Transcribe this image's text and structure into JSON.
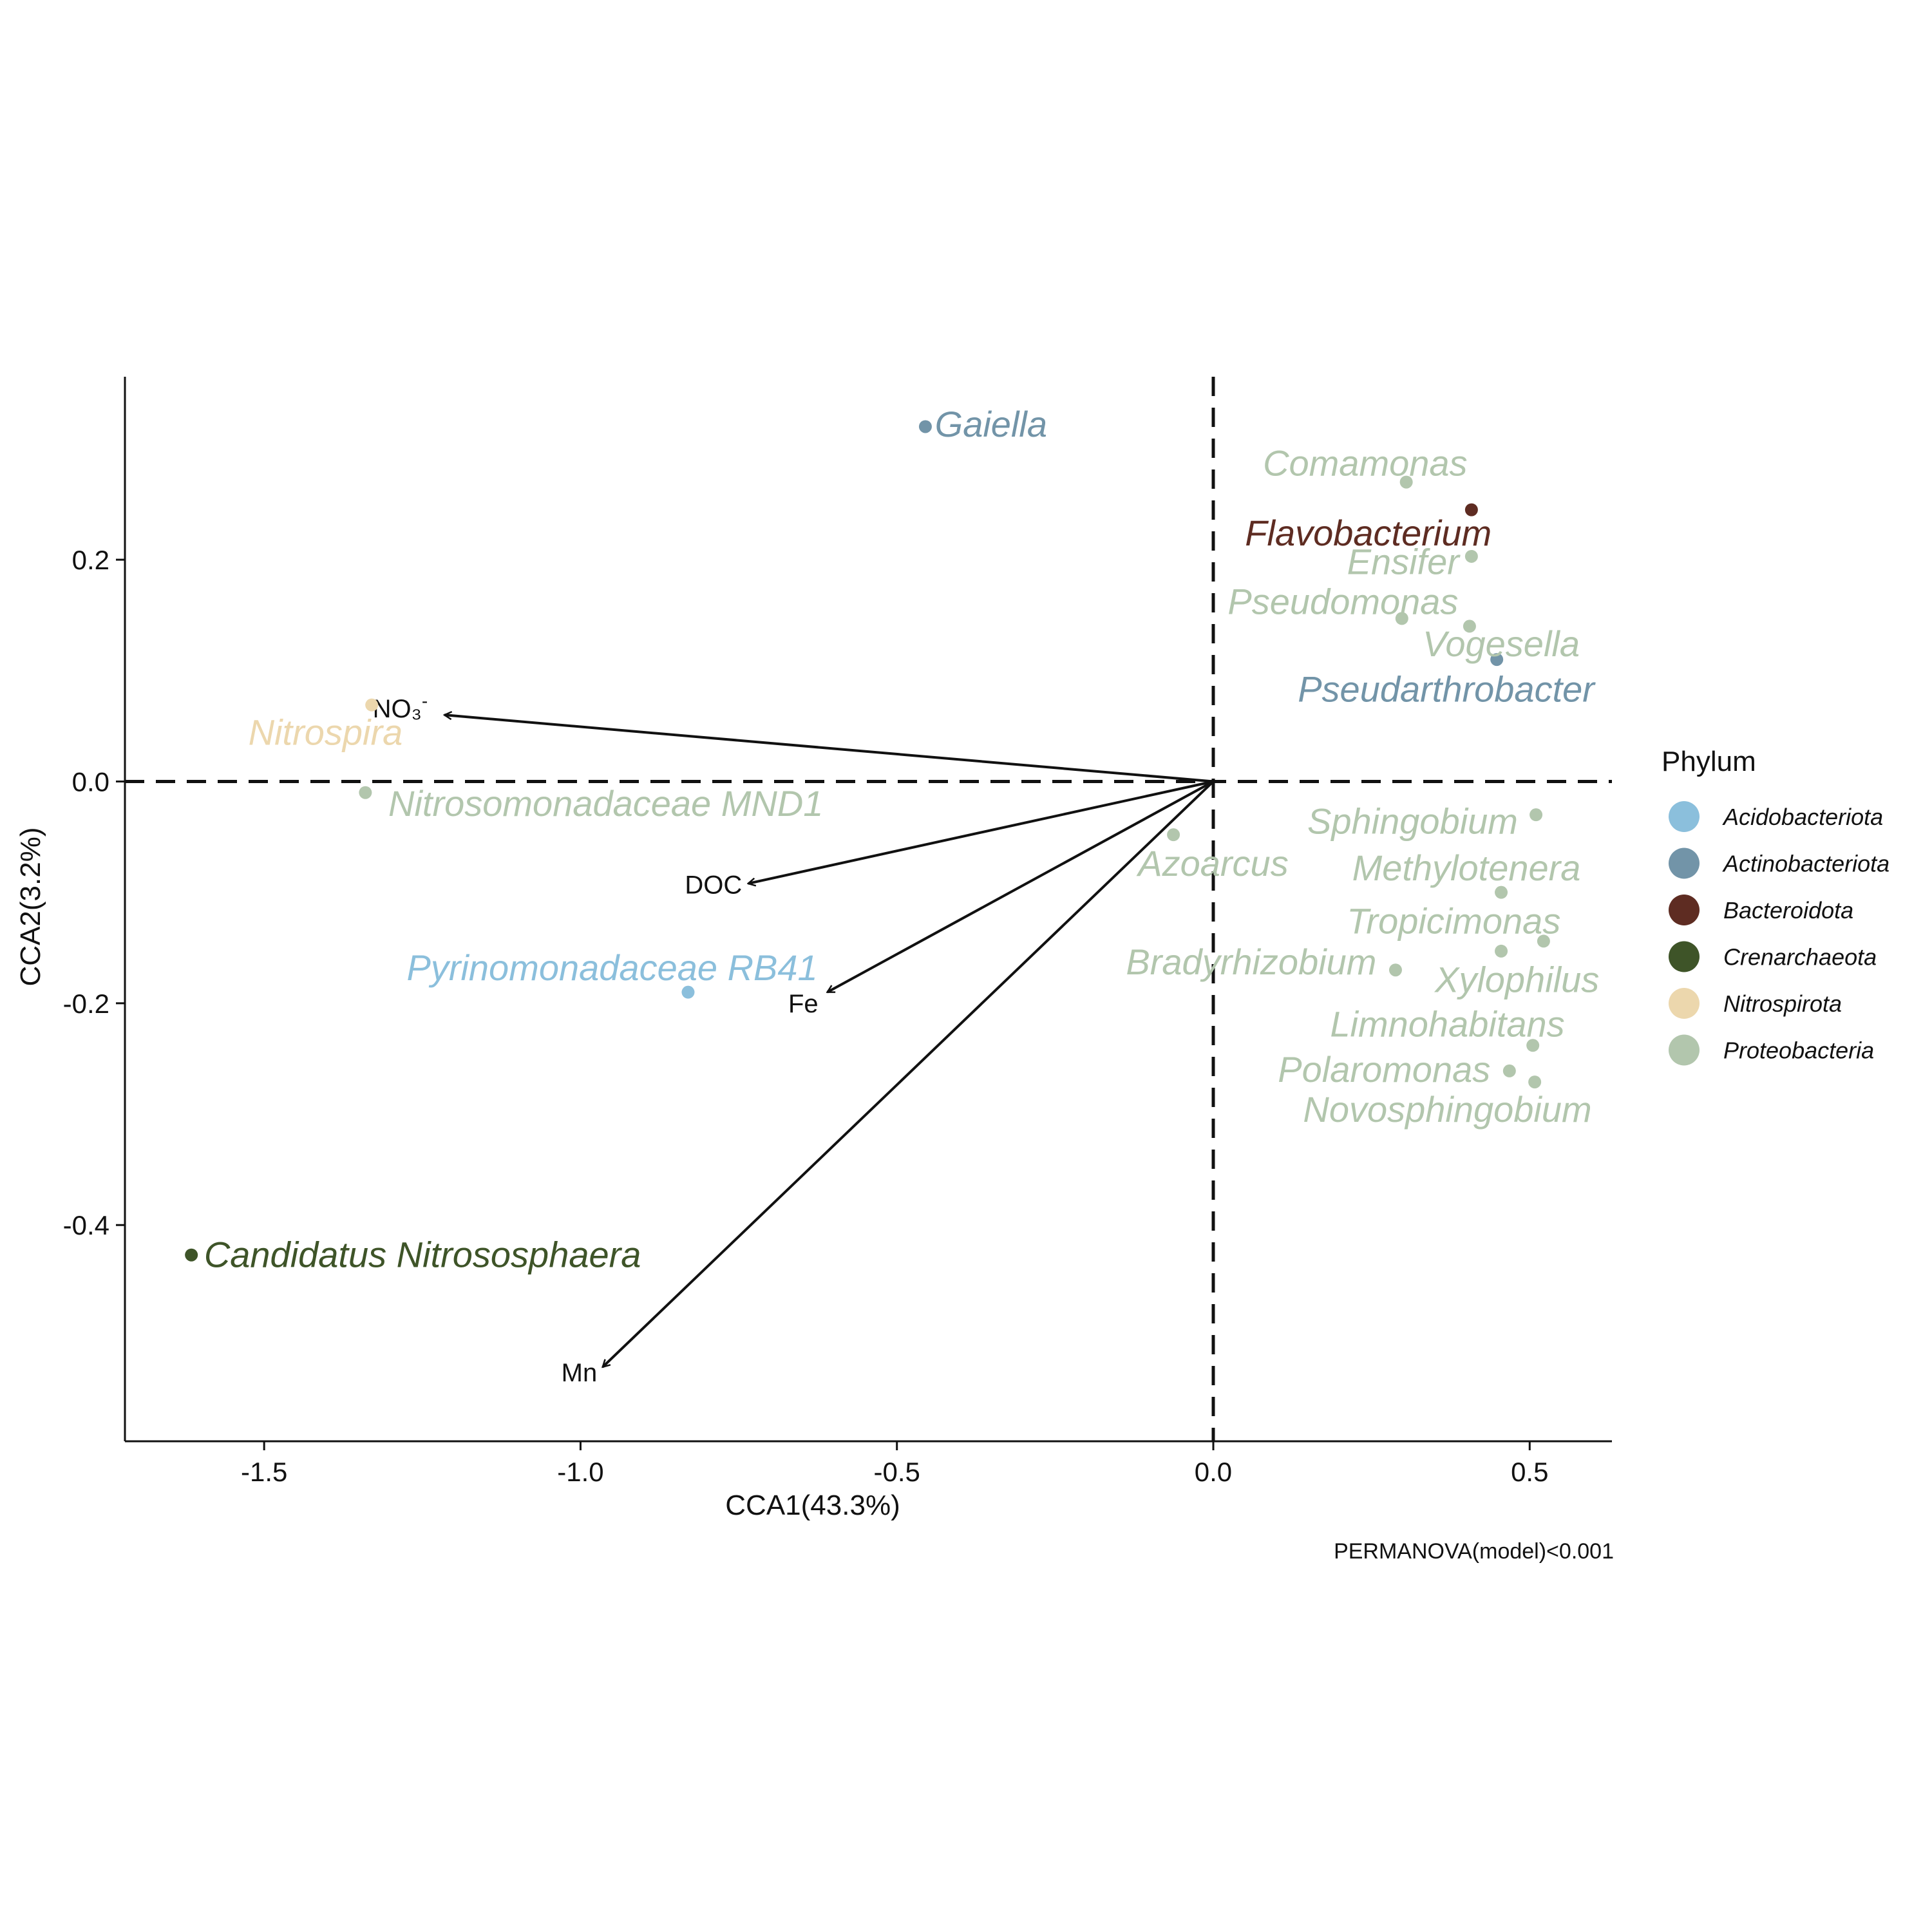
{
  "chart_data": {
    "type": "scatter",
    "xlabel": "CCA1(43.3%)",
    "ylabel": "CCA2(3.2%)",
    "xlim": [
      -1.72,
      0.63
    ],
    "ylim": [
      -0.595,
      0.365
    ],
    "xticks": [
      -1.5,
      -1.0,
      -0.5,
      0.0,
      0.5
    ],
    "yticks": [
      -0.4,
      -0.2,
      0.0,
      0.2
    ],
    "xtick_labels": [
      "-1.5",
      "-1.0",
      "-0.5",
      "0.0",
      "0.5"
    ],
    "ytick_labels": [
      "-0.4",
      "-0.2",
      "0.0",
      "0.2"
    ],
    "reference_lines": {
      "x": 0.0,
      "y": 0.0,
      "style": "dashed"
    },
    "legend": {
      "title": "Phylum",
      "position": "right",
      "items": [
        {
          "name": "Acidobacteriota",
          "color": "#8bbfdc"
        },
        {
          "name": "Actinobacteriota",
          "color": "#7294a8"
        },
        {
          "name": "Bacteroidota",
          "color": "#5e2c22"
        },
        {
          "name": "Crenarchaeota",
          "color": "#3e5428"
        },
        {
          "name": "Nitrospirota",
          "color": "#ecd7ad"
        },
        {
          "name": "Proteobacteria",
          "color": "#b2c6ad"
        }
      ]
    },
    "points": [
      {
        "label": "Gaiella",
        "phylum": "Actinobacteriota",
        "x": -0.455,
        "y": 0.32,
        "lx": -0.44,
        "ly": 0.322,
        "anchor": "start"
      },
      {
        "label": "Comamonas",
        "phylum": "Proteobacteria",
        "x": 0.305,
        "y": 0.27,
        "lx": 0.24,
        "ly": 0.287,
        "anchor": "middle"
      },
      {
        "label": "Flavobacterium",
        "phylum": "Bacteroidota",
        "x": 0.408,
        "y": 0.245,
        "lx": 0.245,
        "ly": 0.224,
        "anchor": "middle"
      },
      {
        "label": "Ensifer",
        "phylum": "Proteobacteria",
        "x": 0.408,
        "y": 0.203,
        "lx": 0.3,
        "ly": 0.198,
        "anchor": "middle"
      },
      {
        "label": "Pseudomonas",
        "phylum": "Proteobacteria",
        "x": 0.298,
        "y": 0.147,
        "lx": 0.205,
        "ly": 0.162,
        "anchor": "middle"
      },
      {
        "label": "Vogesella",
        "phylum": "Proteobacteria",
        "x": 0.405,
        "y": 0.14,
        "lx": 0.455,
        "ly": 0.124,
        "anchor": "middle"
      },
      {
        "label": "Pseudarthrobacter",
        "phylum": "Actinobacteriota",
        "x": 0.448,
        "y": 0.11,
        "lx": 0.368,
        "ly": 0.083,
        "anchor": "middle"
      },
      {
        "label": "Nitrospira",
        "phylum": "Nitrospirota",
        "x": -1.33,
        "y": 0.069,
        "lx": -1.403,
        "ly": 0.044,
        "anchor": "middle"
      },
      {
        "label": "Nitrosomonadaceae MND1",
        "phylum": "Proteobacteria",
        "x": -1.34,
        "y": -0.01,
        "lx": -0.96,
        "ly": -0.02,
        "anchor": "middle"
      },
      {
        "label": "Azoarcus",
        "phylum": "Proteobacteria",
        "x": -0.063,
        "y": -0.048,
        "lx": 0.0,
        "ly": -0.074,
        "anchor": "middle"
      },
      {
        "label": "Sphingobium",
        "phylum": "Proteobacteria",
        "x": 0.51,
        "y": -0.03,
        "lx": 0.315,
        "ly": -0.036,
        "anchor": "middle"
      },
      {
        "label": "Methylotenera",
        "phylum": "Proteobacteria",
        "x": 0.455,
        "y": -0.1,
        "lx": 0.4,
        "ly": -0.078,
        "anchor": "middle"
      },
      {
        "label": "Tropicimonas",
        "phylum": "Proteobacteria",
        "x": 0.455,
        "y": -0.153,
        "lx": 0.38,
        "ly": -0.126,
        "anchor": "middle"
      },
      {
        "label": "Bradyrhizobium",
        "phylum": "Proteobacteria",
        "x": 0.288,
        "y": -0.17,
        "lx": 0.06,
        "ly": -0.163,
        "anchor": "middle"
      },
      {
        "label": "Xylophilus",
        "phylum": "Proteobacteria",
        "x": 0.522,
        "y": -0.144,
        "lx": 0.48,
        "ly": -0.179,
        "anchor": "middle"
      },
      {
        "label": "Pyrinomonadaceae RB41",
        "phylum": "Acidobacteriota",
        "x": -0.83,
        "y": -0.19,
        "lx": -0.95,
        "ly": -0.168,
        "anchor": "middle"
      },
      {
        "label": "Limnohabitans",
        "phylum": "Proteobacteria",
        "x": 0.505,
        "y": -0.238,
        "lx": 0.37,
        "ly": -0.219,
        "anchor": "middle"
      },
      {
        "label": "Polaromonas",
        "phylum": "Proteobacteria",
        "x": 0.468,
        "y": -0.261,
        "lx": 0.27,
        "ly": -0.26,
        "anchor": "middle"
      },
      {
        "label": "Novosphingobium",
        "phylum": "Proteobacteria",
        "x": 0.508,
        "y": -0.271,
        "lx": 0.37,
        "ly": -0.296,
        "anchor": "middle"
      },
      {
        "label": "Candidatus Nitrososphaera",
        "phylum": "Crenarchaeota",
        "x": -1.615,
        "y": -0.427,
        "lx": -1.595,
        "ly": -0.427,
        "anchor": "start"
      }
    ],
    "vectors": [
      {
        "label": "NO₃",
        "sup": "-",
        "x": -1.215,
        "y": 0.06,
        "lx": -1.285,
        "ly": 0.066
      },
      {
        "label": "DOC",
        "x": -0.735,
        "y": -0.092,
        "lx": -0.79,
        "ly": -0.093
      },
      {
        "label": "Fe",
        "x": -0.61,
        "y": -0.19,
        "lx": -0.648,
        "ly": -0.2
      },
      {
        "label": "Mn",
        "x": -0.965,
        "y": -0.528,
        "lx": -1.002,
        "ly": -0.533
      }
    ],
    "annotation": "PERMANOVA(model)<0.001"
  }
}
